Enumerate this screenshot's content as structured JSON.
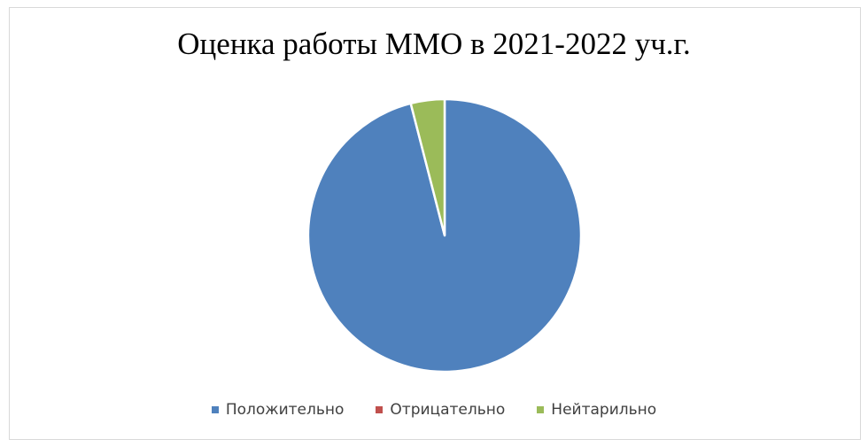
{
  "chart_data": {
    "type": "pie",
    "title": "Оценка работы ММО в 2021-2022 уч.г.",
    "categories": [
      "Положительно",
      "Отрицательно",
      "Нейтарильно"
    ],
    "values": [
      96,
      0,
      4
    ],
    "colors": [
      "#4F81BD",
      "#C0504D",
      "#9BBB59"
    ],
    "legend_position": "bottom",
    "slice_border_color": "#FFFFFF"
  }
}
